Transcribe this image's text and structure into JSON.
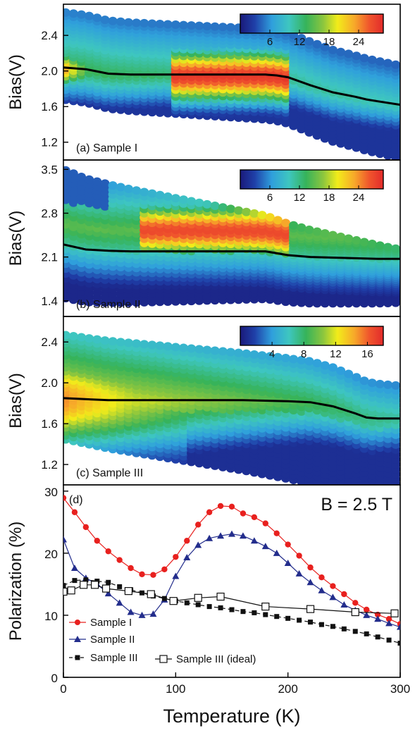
{
  "chart_data": [
    {
      "type": "heatmap",
      "panel_label": "(a) Sample I",
      "ylabel": "Bias(V)",
      "ylim": [
        1.0,
        2.75
      ],
      "yticks": [
        "1.2",
        "1.6",
        "2.0",
        "2.4"
      ],
      "xlim": [
        0,
        300
      ],
      "colorbar": {
        "ticks": [
          "6",
          "12",
          "18",
          "24"
        ],
        "range": [
          0,
          29
        ]
      },
      "ridge_line": {
        "x": [
          0,
          20,
          40,
          60,
          80,
          100,
          120,
          140,
          160,
          180,
          190,
          200,
          220,
          240,
          260,
          270,
          280,
          300
        ],
        "y": [
          2.04,
          2.02,
          1.97,
          1.96,
          1.96,
          1.96,
          1.96,
          1.96,
          1.96,
          1.96,
          1.95,
          1.93,
          1.84,
          1.76,
          1.71,
          1.68,
          1.66,
          1.62
        ]
      },
      "hot_region": {
        "x": [
          100,
          200
        ],
        "y": [
          1.75,
          2.2
        ],
        "peak": 28
      },
      "warm_region": {
        "x": [
          0,
          20
        ],
        "y": [
          1.85,
          2.15
        ],
        "peak": 24
      }
    },
    {
      "type": "heatmap",
      "panel_label": "(b) Sample II",
      "ylabel": "Bias(V)",
      "ylim": [
        1.15,
        3.65
      ],
      "yticks": [
        "1.4",
        "2.1",
        "2.8",
        "3.5"
      ],
      "xlim": [
        0,
        300
      ],
      "colorbar": {
        "ticks": [
          "6",
          "12",
          "18",
          "24"
        ],
        "range": [
          0,
          29
        ]
      },
      "ridge_line": {
        "x": [
          0,
          20,
          40,
          60,
          80,
          100,
          120,
          140,
          160,
          180,
          200,
          220,
          240,
          260,
          280,
          300
        ],
        "y": [
          2.3,
          2.22,
          2.2,
          2.19,
          2.19,
          2.19,
          2.19,
          2.19,
          2.19,
          2.19,
          2.13,
          2.1,
          2.09,
          2.08,
          2.07,
          2.07
        ]
      },
      "hot_region": {
        "x": [
          70,
          200
        ],
        "y": [
          2.25,
          3.05
        ],
        "peak": 27
      }
    },
    {
      "type": "heatmap",
      "panel_label": "(c) Sample III",
      "ylabel": "Bias(V)",
      "ylim": [
        1.0,
        2.65
      ],
      "yticks": [
        "1.2",
        "1.6",
        "2.0",
        "2.4"
      ],
      "xlim": [
        0,
        300
      ],
      "colorbar": {
        "ticks": [
          "4",
          "8",
          "12",
          "16"
        ],
        "range": [
          0,
          18
        ]
      },
      "ridge_line": {
        "x": [
          0,
          40,
          80,
          120,
          160,
          200,
          220,
          240,
          260,
          270,
          280,
          300
        ],
        "y": [
          1.85,
          1.83,
          1.83,
          1.83,
          1.83,
          1.82,
          1.81,
          1.77,
          1.7,
          1.66,
          1.65,
          1.65
        ]
      },
      "hot_region": {
        "x": [
          0,
          80
        ],
        "y": [
          1.75,
          2.45
        ],
        "peak": 15
      }
    },
    {
      "type": "line",
      "panel_label": "(d)",
      "annotation": "B = 2.5 T",
      "xlabel": "Temperature (K)",
      "ylabel": "Polarization (%)",
      "xlim": [
        0,
        300
      ],
      "ylim": [
        0,
        31
      ],
      "xticks": [
        "0",
        "100",
        "200",
        "300"
      ],
      "yticks": [
        "0",
        "10",
        "20",
        "30"
      ],
      "series": [
        {
          "name": "Sample I",
          "color": "#e8201e",
          "marker": "circle",
          "line": "solid",
          "x": [
            0,
            10,
            20,
            30,
            40,
            50,
            60,
            70,
            80,
            90,
            100,
            110,
            120,
            130,
            140,
            150,
            160,
            170,
            180,
            190,
            200,
            210,
            220,
            230,
            240,
            250,
            260,
            270,
            280,
            290,
            300
          ],
          "y": [
            28.9,
            26.6,
            24.2,
            22.0,
            20.3,
            18.9,
            17.6,
            16.6,
            16.5,
            17.4,
            19.4,
            22.0,
            24.6,
            26.6,
            27.6,
            27.5,
            26.4,
            25.8,
            24.8,
            23.2,
            21.4,
            19.6,
            17.7,
            16.1,
            14.7,
            13.4,
            12.0,
            10.9,
            10.1,
            9.4,
            8.6
          ]
        },
        {
          "name": "Sample II",
          "color": "#232d8c",
          "marker": "triangle",
          "line": "solid",
          "x": [
            0,
            10,
            20,
            30,
            40,
            50,
            60,
            70,
            80,
            90,
            100,
            110,
            120,
            130,
            140,
            150,
            160,
            170,
            180,
            190,
            200,
            210,
            220,
            230,
            240,
            250,
            260,
            270,
            280,
            290,
            300
          ],
          "y": [
            22.2,
            17.6,
            16.0,
            15.0,
            13.5,
            12.0,
            10.5,
            10.0,
            10.2,
            12.5,
            16.3,
            19.3,
            21.3,
            22.4,
            22.8,
            23.1,
            22.8,
            22.0,
            21.1,
            20.0,
            18.4,
            16.7,
            15.3,
            14.0,
            12.9,
            11.7,
            10.8,
            10.0,
            9.4,
            8.7,
            8.1
          ]
        },
        {
          "name": "Sample III",
          "color": "#111111",
          "marker": "square",
          "line": "dashed",
          "x": [
            0,
            10,
            20,
            30,
            40,
            50,
            60,
            70,
            80,
            90,
            100,
            110,
            120,
            130,
            140,
            150,
            160,
            170,
            180,
            190,
            200,
            210,
            220,
            230,
            240,
            250,
            260,
            270,
            280,
            290,
            300
          ],
          "y": [
            14.8,
            15.6,
            15.7,
            15.5,
            15.3,
            14.6,
            14.1,
            13.6,
            13.1,
            12.7,
            12.3,
            12.0,
            11.7,
            11.4,
            11.2,
            10.9,
            10.6,
            10.4,
            10.1,
            9.8,
            9.5,
            9.2,
            8.9,
            8.5,
            8.2,
            7.8,
            7.4,
            7.0,
            6.5,
            6.0,
            5.5
          ]
        },
        {
          "name": "Sample III (ideal)",
          "color": "#111111",
          "marker": "open-square",
          "line": "solid",
          "x": [
            0,
            7,
            18,
            28,
            38,
            58,
            78,
            98,
            120,
            140,
            180,
            220,
            260,
            295
          ],
          "y": [
            13.8,
            14.0,
            14.9,
            14.9,
            14.3,
            13.9,
            13.4,
            12.3,
            12.8,
            13.0,
            11.4,
            11.0,
            10.5,
            10.3
          ]
        }
      ]
    }
  ]
}
